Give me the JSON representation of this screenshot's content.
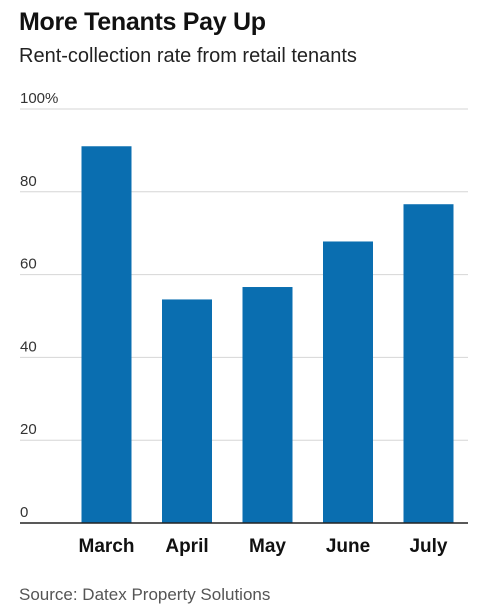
{
  "chart_data": {
    "type": "bar",
    "title": "More Tenants Pay Up",
    "subtitle": "Rent-collection rate from retail tenants",
    "categories": [
      "March",
      "April",
      "May",
      "June",
      "July"
    ],
    "values": [
      91,
      54,
      57,
      68,
      77
    ],
    "ylim": [
      0,
      100
    ],
    "yticks": [
      {
        "value": 0,
        "label": "0"
      },
      {
        "value": 20,
        "label": "20"
      },
      {
        "value": 40,
        "label": "40"
      },
      {
        "value": 60,
        "label": "60"
      },
      {
        "value": 80,
        "label": "80"
      },
      {
        "value": 100,
        "label": "100%"
      }
    ],
    "grid": true,
    "bar_color": "#0a6eb0",
    "source": "Source: Datex Property Solutions"
  }
}
